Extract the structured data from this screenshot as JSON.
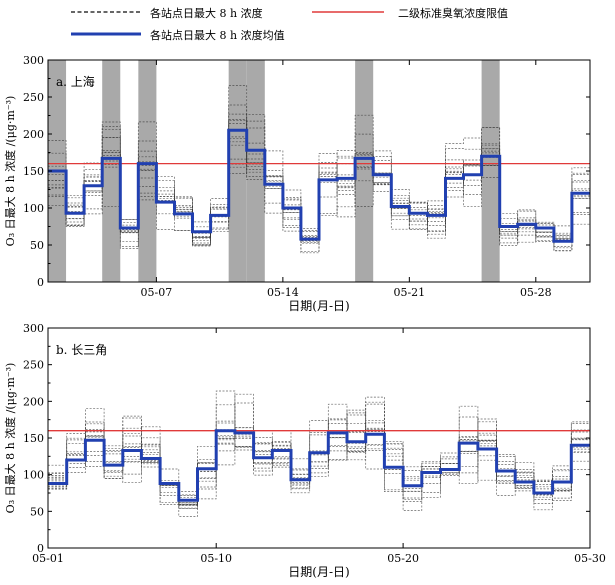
{
  "legend": {
    "stations": "各站点日最大 8 h 浓度",
    "limit": "二级标准臭氧浓度限值",
    "mean": "各站点日最大 8 h 浓度均值"
  },
  "colors": {
    "mean": "#2140b0",
    "limit": "#e03a3a",
    "stations": "#333333",
    "shade": "#a9a9a9"
  },
  "chart_data": [
    {
      "type": "line",
      "panel_label": "a. 上海",
      "xlabel": "日期(月-日)",
      "ylabel": "O₃ 日最大 8 h 浓度 /(μg·m⁻³)",
      "ylim": [
        0,
        300
      ],
      "yticks": [
        0,
        50,
        100,
        150,
        200,
        250,
        300
      ],
      "xlim": [
        1,
        31
      ],
      "xticks": [
        {
          "day": 7,
          "label": "05-07"
        },
        {
          "day": 14,
          "label": "05-14"
        },
        {
          "day": 21,
          "label": "05-21"
        },
        {
          "day": 28,
          "label": "05-28"
        }
      ],
      "limit_value": 160,
      "shaded_days": [
        1,
        4,
        6,
        11,
        12,
        18,
        25
      ],
      "series": [
        {
          "name": "各站点日最大 8 h 浓度均值",
          "days": [
            1,
            2,
            3,
            4,
            5,
            6,
            7,
            8,
            9,
            10,
            11,
            12,
            13,
            14,
            15,
            16,
            17,
            18,
            19,
            20,
            21,
            22,
            23,
            24,
            25,
            26,
            27,
            28,
            29,
            30
          ],
          "values": [
            150,
            93,
            130,
            167,
            73,
            160,
            108,
            92,
            68,
            90,
            205,
            178,
            132,
            100,
            58,
            138,
            140,
            167,
            145,
            102,
            93,
            90,
            140,
            145,
            170,
            75,
            78,
            73,
            55,
            120
          ]
        }
      ]
    },
    {
      "type": "line",
      "panel_label": "b. 长三角",
      "xlabel": "日期(月-日)",
      "ylabel": "O₃ 日最大 8 h 浓度 /(μg·m⁻³)",
      "ylim": [
        0,
        300
      ],
      "yticks": [
        0,
        50,
        100,
        150,
        200,
        250,
        300
      ],
      "xlim": [
        1,
        30
      ],
      "xticks": [
        {
          "day": 1,
          "label": "05-01"
        },
        {
          "day": 10,
          "label": "05-10"
        },
        {
          "day": 20,
          "label": "05-20"
        },
        {
          "day": 30,
          "label": "05-30"
        }
      ],
      "limit_value": 160,
      "shaded_days": [],
      "series": [
        {
          "name": "各站点日最大 8 h 浓度均值",
          "days": [
            1,
            2,
            3,
            4,
            5,
            6,
            7,
            8,
            9,
            10,
            11,
            12,
            13,
            14,
            15,
            16,
            17,
            18,
            19,
            20,
            21,
            22,
            23,
            24,
            25,
            26,
            27,
            28,
            29
          ],
          "values": [
            88,
            120,
            147,
            113,
            133,
            122,
            88,
            65,
            108,
            160,
            157,
            123,
            133,
            93,
            130,
            157,
            145,
            155,
            110,
            85,
            103,
            107,
            143,
            135,
            105,
            90,
            75,
            90,
            140
          ]
        }
      ]
    }
  ]
}
